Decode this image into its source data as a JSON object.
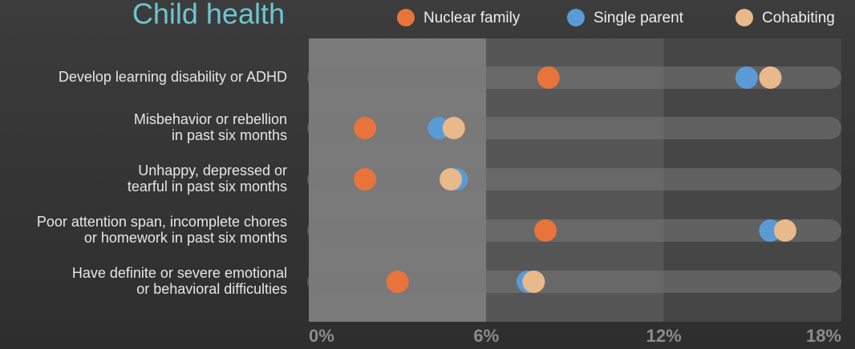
{
  "chart_data": {
    "type": "dot",
    "title": "Child health",
    "categories": [
      [
        "Develop  learning disability or ADHD"
      ],
      [
        "Misbehavior or rebellion",
        "in past six months"
      ],
      [
        "Unhappy, depressed or",
        "tearful in past  six months"
      ],
      [
        "Poor attention span, incomplete chores",
        "or homework in past six months"
      ],
      [
        "Have definite or severe emotional",
        "or behavioral difficulties"
      ]
    ],
    "series": [
      {
        "name": "Nuclear family",
        "color": "#e8743b",
        "values": [
          8.1,
          1.9,
          1.9,
          8.0,
          3.0
        ]
      },
      {
        "name": "Single parent",
        "color": "#5b9bd5",
        "values": [
          14.8,
          4.4,
          5.0,
          15.6,
          7.4
        ]
      },
      {
        "name": "Cohabiting",
        "color": "#e8b98a",
        "values": [
          15.6,
          4.9,
          4.8,
          16.1,
          7.6
        ]
      }
    ],
    "xlim": [
      0,
      18
    ],
    "xticks": [
      {
        "value": 0,
        "label": "0%"
      },
      {
        "value": 6,
        "label": "6%"
      },
      {
        "value": 12,
        "label": "12%"
      },
      {
        "value": 18,
        "label": "18%"
      }
    ]
  }
}
